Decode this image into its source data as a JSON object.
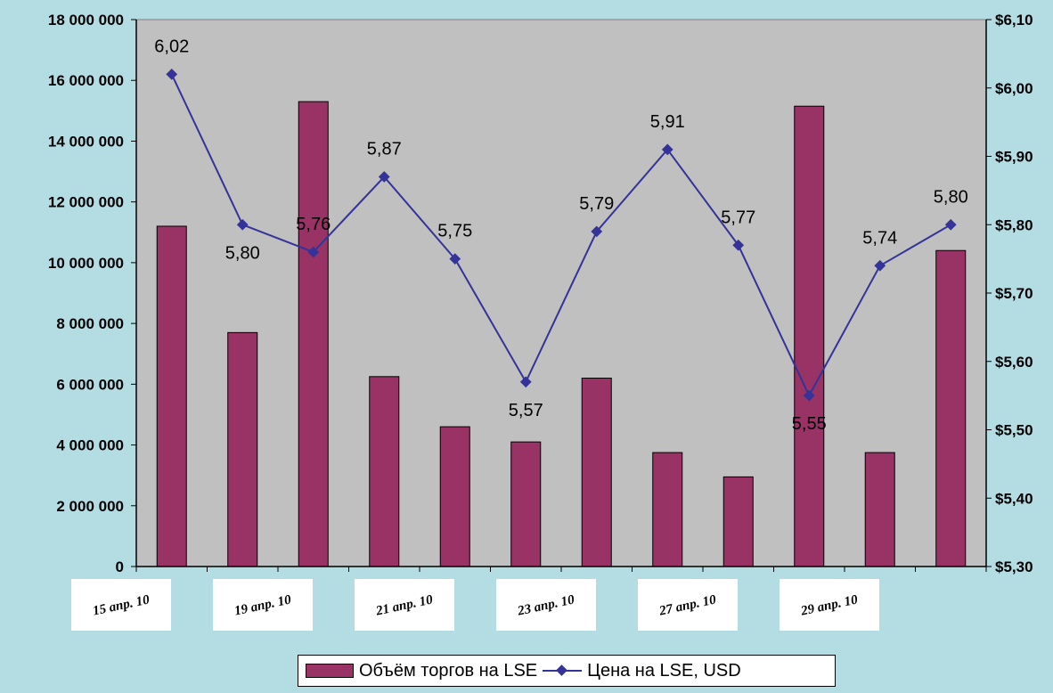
{
  "chart_data": {
    "type": "bar",
    "categories": [
      "15 апр. 10",
      "",
      "19 апр. 10",
      "",
      "21 апр. 10",
      "",
      "23 апр. 10",
      "",
      "27 апр. 10",
      "",
      "29 апр. 10",
      ""
    ],
    "x_tick_labels": [
      "15 апр. 10",
      "19 апр. 10",
      "21 апр. 10",
      "23 апр. 10",
      "27 апр. 10",
      "29 апр. 10"
    ],
    "series": [
      {
        "name": "Объём торгов на LSE",
        "type": "bar",
        "axis": "left",
        "color": "#993366",
        "values": [
          11200000,
          7700000,
          15300000,
          6250000,
          4600000,
          4100000,
          6200000,
          3750000,
          2950000,
          15150000,
          3750000,
          10400000
        ]
      },
      {
        "name": "Цена на LSE, USD",
        "type": "line",
        "axis": "right",
        "color": "#333399",
        "marker": "diamond",
        "values": [
          6.02,
          5.8,
          5.76,
          5.87,
          5.75,
          5.57,
          5.79,
          5.91,
          5.77,
          5.55,
          5.74,
          5.8
        ],
        "data_labels": [
          "6,02",
          "5,80",
          "5,76",
          "5,87",
          "5,75",
          "5,57",
          "5,79",
          "5,91",
          "5,77",
          "5,55",
          "5,74",
          "5,80"
        ]
      }
    ],
    "y_left": {
      "ylim": [
        0,
        18000000
      ],
      "ticks": [
        0,
        2000000,
        4000000,
        6000000,
        8000000,
        10000000,
        12000000,
        14000000,
        16000000,
        18000000
      ],
      "tick_labels": [
        "0",
        "2 000 000",
        "4 000 000",
        "6 000 000",
        "8 000 000",
        "10 000 000",
        "12 000 000",
        "14 000 000",
        "16 000 000",
        "18 000 000"
      ]
    },
    "y_right": {
      "ylim": [
        5.3,
        6.1
      ],
      "ticks": [
        5.3,
        5.4,
        5.5,
        5.6,
        5.7,
        5.8,
        5.9,
        6.0,
        6.1
      ],
      "tick_labels": [
        "$5,30",
        "$5,40",
        "$5,50",
        "$5,60",
        "$5,70",
        "$5,80",
        "$5,90",
        "$6,00",
        "$6,10"
      ]
    },
    "plot_background": "#c0c0c0",
    "page_background": "#b3dde3",
    "grid": false,
    "legend_position": "bottom"
  },
  "legend": {
    "bar_label": "Объём торгов на LSE",
    "line_label": "Цена на LSE, USD"
  }
}
